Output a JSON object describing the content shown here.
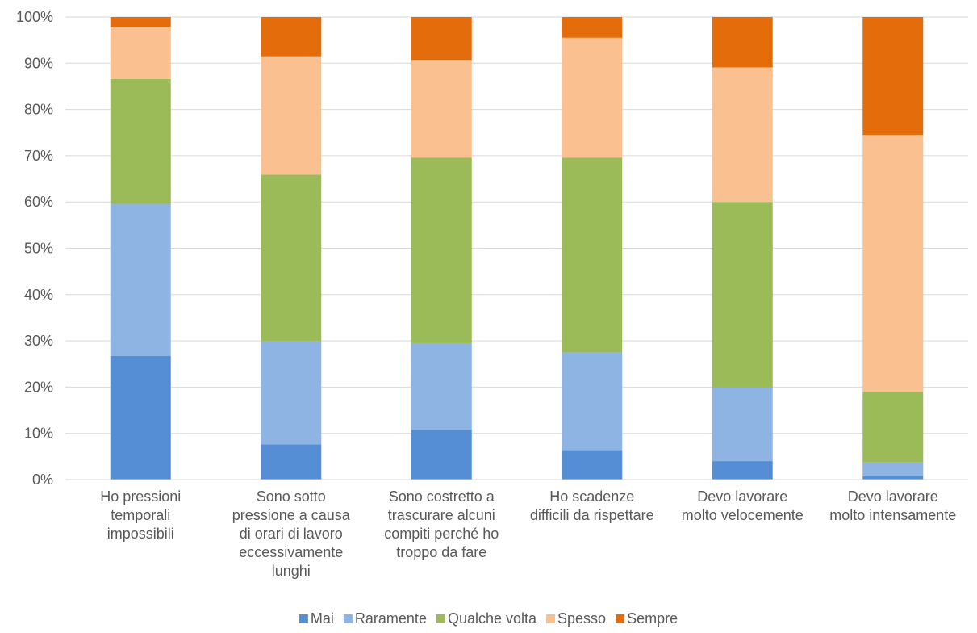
{
  "chart_data": {
    "type": "bar",
    "stacked": true,
    "percent_stacked": true,
    "categories": [
      [
        "Ho pressioni",
        "temporali",
        "impossibili"
      ],
      [
        "Sono sotto",
        "pressione a causa",
        "di orari di lavoro",
        "eccessivamente",
        "lunghi"
      ],
      [
        "Sono costretto a",
        "trascurare alcuni",
        "compiti perché ho",
        "troppo da fare"
      ],
      [
        "Ho scadenze",
        "difficili da rispettare"
      ],
      [
        "Devo lavorare",
        "molto velocemente"
      ],
      [
        "Devo lavorare",
        "molto intensamente"
      ]
    ],
    "series": [
      {
        "name": "Mai",
        "color": "#558ED5",
        "values": [
          26.7,
          7.6,
          10.8,
          6.4,
          4.0,
          0.7
        ]
      },
      {
        "name": "Raramente",
        "color": "#8EB4E3",
        "values": [
          32.9,
          22.3,
          18.7,
          21.1,
          15.9,
          3.0
        ]
      },
      {
        "name": "Qualche volta",
        "color": "#9BBB59",
        "values": [
          27.0,
          36.0,
          40.1,
          42.1,
          40.1,
          15.3
        ]
      },
      {
        "name": "Spesso",
        "color": "#FAC090",
        "values": [
          11.3,
          25.6,
          21.1,
          25.9,
          29.1,
          55.5
        ]
      },
      {
        "name": "Sempre",
        "color": "#E46C0A",
        "values": [
          2.1,
          8.5,
          9.3,
          4.5,
          10.9,
          25.5
        ]
      }
    ],
    "yticks": [
      "0%",
      "10%",
      "20%",
      "30%",
      "40%",
      "50%",
      "60%",
      "70%",
      "80%",
      "90%",
      "100%"
    ],
    "ylim": [
      0,
      100
    ],
    "grid": true,
    "legend_position": "bottom",
    "title": "",
    "xlabel": "",
    "ylabel": ""
  }
}
